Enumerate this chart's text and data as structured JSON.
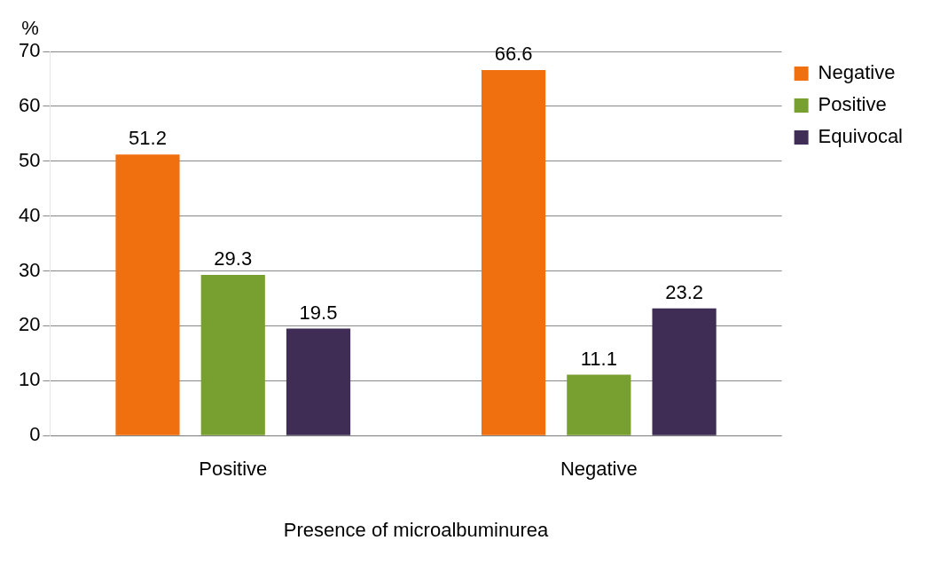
{
  "chart_data": {
    "type": "bar",
    "xlabel": "Presence of microalbuminurea",
    "ylabel": "%",
    "categories": [
      "Positive",
      "Negative"
    ],
    "series": [
      {
        "name": "Negative",
        "color": "#f07010",
        "values": [
          51.2,
          66.6
        ]
      },
      {
        "name": "Positive",
        "color": "#78a030",
        "values": [
          29.3,
          11.1
        ]
      },
      {
        "name": "Equivocal",
        "color": "#3f2d55",
        "values": [
          19.5,
          23.2
        ]
      }
    ],
    "ylim": [
      0,
      70
    ],
    "yticks": [
      0,
      10,
      20,
      30,
      40,
      50,
      60,
      70
    ],
    "grid": "y",
    "legend": "top right",
    "data_labels": true
  }
}
